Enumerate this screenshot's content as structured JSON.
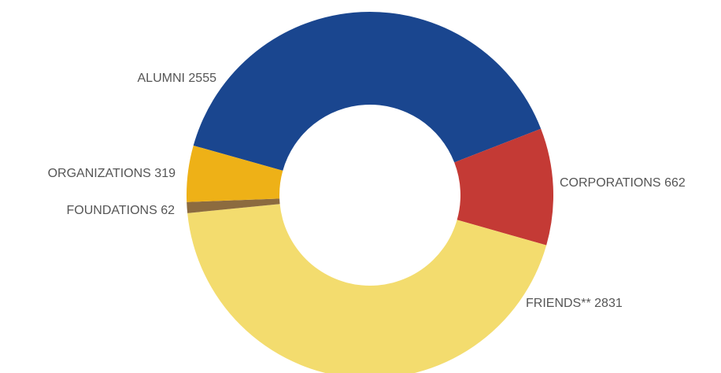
{
  "chart_data": {
    "type": "donut",
    "categories": [
      "ALUMNI",
      "CORPORATIONS",
      "FRIENDS**",
      "FOUNDATIONS",
      "ORGANIZATIONS"
    ],
    "values": [
      2555,
      662,
      2831,
      62,
      319
    ],
    "colors": [
      "#1a468f",
      "#c43a35",
      "#f3dc6e",
      "#8c6b3f",
      "#eeb117"
    ]
  }
}
